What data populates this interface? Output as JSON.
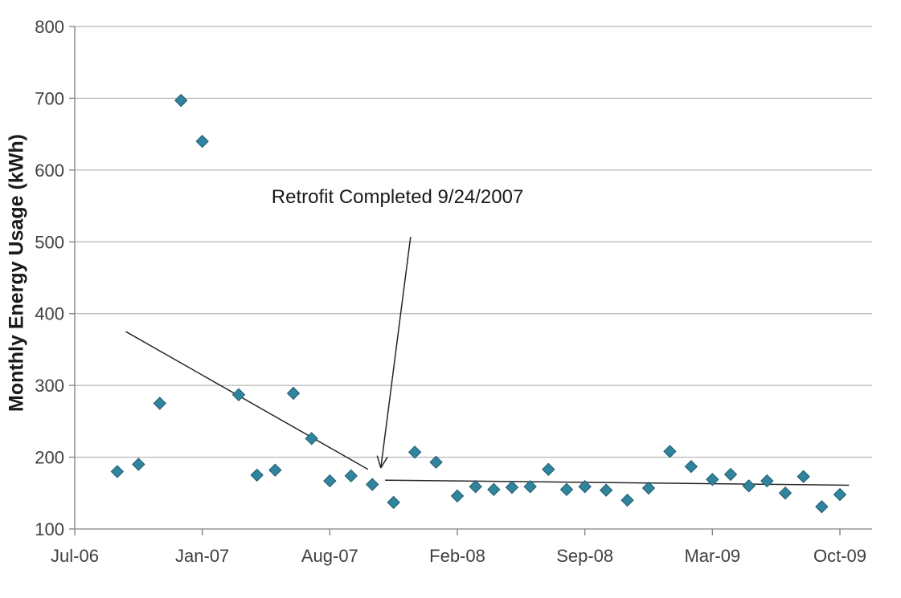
{
  "chart_data": {
    "type": "scatter",
    "title": "",
    "xlabel": "",
    "ylabel": "Monthly Energy Usage (kWh)",
    "x_tick_labels": [
      "Jul-06",
      "Jan-07",
      "Aug-07",
      "Feb-08",
      "Sep-08",
      "Mar-09",
      "Oct-09"
    ],
    "x_tick_month_indices": [
      0,
      6,
      13,
      19,
      26,
      32,
      39
    ],
    "y_ticks": [
      100,
      200,
      300,
      400,
      500,
      600,
      700,
      800
    ],
    "ylim": [
      100,
      800
    ],
    "grid": true,
    "legend": false,
    "marker": "diamond",
    "series": [
      {
        "name": "Monthly Energy Usage",
        "points": [
          {
            "label": "Sep-06",
            "m": 2,
            "kwh": 180
          },
          {
            "label": "Oct-06",
            "m": 3,
            "kwh": 190
          },
          {
            "label": "Nov-06",
            "m": 4,
            "kwh": 275
          },
          {
            "label": "Dec-06",
            "m": 5,
            "kwh": 697
          },
          {
            "label": "Jan-07",
            "m": 6,
            "kwh": 640
          },
          {
            "label": "Mar-07",
            "m": 8,
            "kwh": 287
          },
          {
            "label": "Apr-07",
            "m": 9,
            "kwh": 175
          },
          {
            "label": "May-07",
            "m": 10,
            "kwh": 182
          },
          {
            "label": "Jun-07",
            "m": 11,
            "kwh": 289
          },
          {
            "label": "Jul-07",
            "m": 12,
            "kwh": 226
          },
          {
            "label": "Aug-07",
            "m": 13,
            "kwh": 167
          },
          {
            "label": "Sep-07",
            "m": 14,
            "kwh": 174
          },
          {
            "label": "Oct-07",
            "m": 15,
            "kwh": 162
          },
          {
            "label": "Nov-07",
            "m": 16,
            "kwh": 137
          },
          {
            "label": "Dec-07",
            "m": 17,
            "kwh": 207
          },
          {
            "label": "Jan-08",
            "m": 18,
            "kwh": 193
          },
          {
            "label": "Feb-08",
            "m": 19,
            "kwh": 146
          },
          {
            "label": "Mar-08",
            "m": 20,
            "kwh": 159
          },
          {
            "label": "Apr-08",
            "m": 21,
            "kwh": 155
          },
          {
            "label": "May-08",
            "m": 22,
            "kwh": 158
          },
          {
            "label": "Jun-08",
            "m": 23,
            "kwh": 159
          },
          {
            "label": "Jul-08",
            "m": 24,
            "kwh": 183
          },
          {
            "label": "Aug-08",
            "m": 25,
            "kwh": 155
          },
          {
            "label": "Sep-08",
            "m": 26,
            "kwh": 159
          },
          {
            "label": "Oct-08",
            "m": 27,
            "kwh": 154
          },
          {
            "label": "Nov-08",
            "m": 28,
            "kwh": 140
          },
          {
            "label": "Dec-08",
            "m": 29,
            "kwh": 157
          },
          {
            "label": "Jan-09",
            "m": 30,
            "kwh": 208
          },
          {
            "label": "Feb-09",
            "m": 31,
            "kwh": 187
          },
          {
            "label": "Mar-09",
            "m": 32,
            "kwh": 169
          },
          {
            "label": "Apr-09",
            "m": 33,
            "kwh": 176
          },
          {
            "label": "May-09",
            "m": 34,
            "kwh": 160
          },
          {
            "label": "Jun-09",
            "m": 35,
            "kwh": 167
          },
          {
            "label": "Jul-09",
            "m": 36,
            "kwh": 150
          },
          {
            "label": "Aug-09",
            "m": 37,
            "kwh": 173
          },
          {
            "label": "Sep-09",
            "m": 38,
            "kwh": 131
          },
          {
            "label": "Oct-09",
            "m": 39,
            "kwh": 148
          }
        ]
      }
    ],
    "trendlines": [
      {
        "name": "pre-retrofit trend",
        "from": {
          "m": 2.4,
          "kwh": 375
        },
        "to": {
          "m": 14.8,
          "kwh": 183
        }
      },
      {
        "name": "post-retrofit trend",
        "from": {
          "m": 15.6,
          "kwh": 168
        },
        "to": {
          "m": 39.5,
          "kwh": 161
        }
      }
    ],
    "annotation": {
      "text": "Retrofit Completed 9/24/2007",
      "text_pos": {
        "m": 9.8,
        "kwh": 578
      },
      "arrow_from": {
        "m": 16.8,
        "kwh": 507
      },
      "arrow_to": {
        "m": 15.4,
        "kwh": 185
      }
    },
    "colors": {
      "marker_fill": "#31849b",
      "marker_stroke": "#1f5c73",
      "gridline": "#a6a6a6",
      "axis": "#808080",
      "tick_label": "#404040",
      "trendline": "#262626",
      "annotation_arrow": "#262626",
      "background": "#ffffff"
    }
  }
}
